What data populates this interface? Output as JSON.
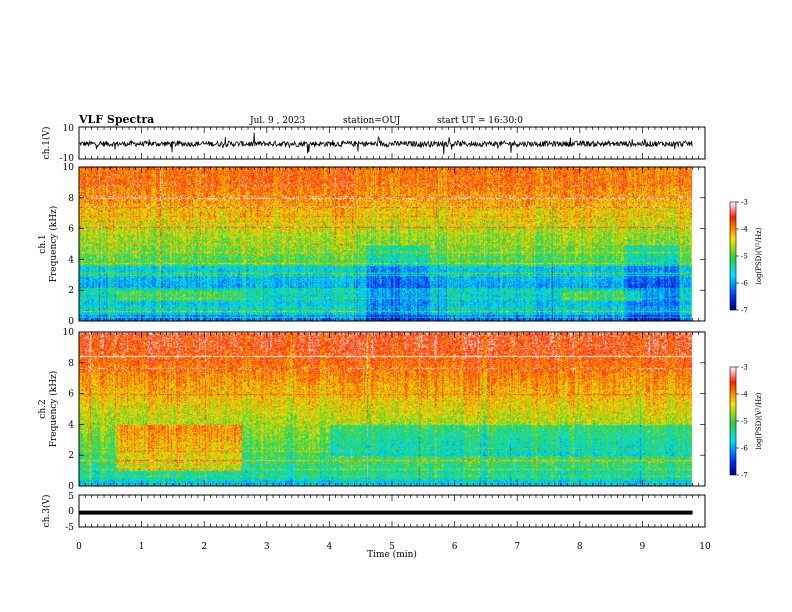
{
  "header": {
    "title": "VLF Spectra",
    "date": "Jul. 9 , 2023",
    "station": "station=OUJ",
    "start": "start UT = 16:30:0"
  },
  "chart_data": [
    {
      "type": "line",
      "name": "ch1-waveform",
      "ylabel": "ch.1(V)",
      "ylim": [
        -10,
        10
      ],
      "yticks": [
        "10",
        "-10"
      ],
      "xlim": [
        0,
        10
      ],
      "data_end_min": 9.8
    },
    {
      "type": "heatmap",
      "name": "ch1-spectrogram",
      "ylabel_line1": "ch.1",
      "ylabel_line2": "Frequency (kHz)",
      "ylim": [
        0,
        10
      ],
      "yticks": [
        "0",
        "2",
        "4",
        "6",
        "8",
        "10"
      ],
      "xlim": [
        0,
        10
      ],
      "data_end_min": 9.8,
      "colorbar": {
        "label": "log(PSD)(V²/Hz)",
        "range": [
          -7,
          -3
        ],
        "ticks": [
          "-3",
          "-4",
          "-5",
          "-6",
          "-7"
        ]
      }
    },
    {
      "type": "heatmap",
      "name": "ch2-spectrogram",
      "ylabel_line1": "ch.2",
      "ylabel_line2": "Frequency (kHz)",
      "ylim": [
        0,
        10
      ],
      "yticks": [
        "0",
        "2",
        "4",
        "6",
        "8",
        "10"
      ],
      "xlim": [
        0,
        10
      ],
      "data_end_min": 9.8,
      "colorbar": {
        "label": "log(PSD)(V²/Hz)",
        "range": [
          -7,
          -3
        ],
        "ticks": [
          "-3",
          "-4",
          "-5",
          "-6",
          "-7"
        ]
      }
    },
    {
      "type": "line",
      "name": "ch3-waveform",
      "ylabel": "ch.3(V)",
      "ylim": [
        -5,
        5
      ],
      "yticks": [
        "5",
        "0",
        "-5"
      ],
      "xlim": [
        0,
        10
      ],
      "value": -0.5,
      "data_end_min": 9.8
    }
  ],
  "xaxis": {
    "label": "Time (min)",
    "ticks": [
      "0",
      "1",
      "2",
      "3",
      "4",
      "5",
      "6",
      "7",
      "8",
      "9",
      "10"
    ]
  },
  "colors": {
    "red": "#ff2000",
    "yellow": "#ffe000",
    "green": "#30d040",
    "cyan": "#00e0ff",
    "blue": "#0030ff",
    "navy": "#000080"
  }
}
